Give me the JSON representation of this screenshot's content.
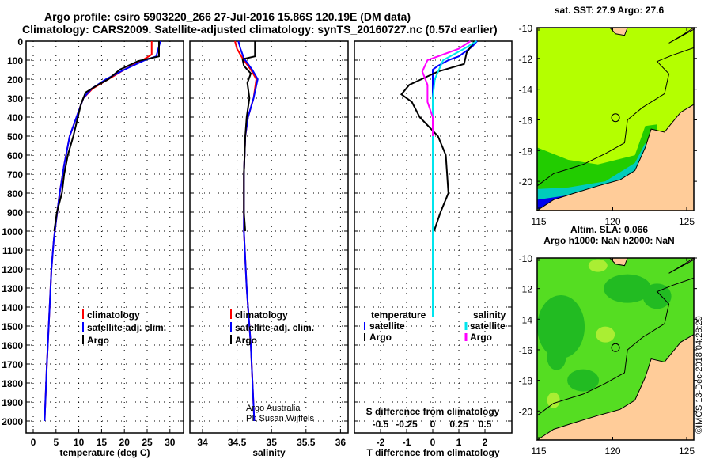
{
  "title_line1": "Argo profile: csiro 5903220_266 27-Jul-2016 15.86S 120.19E (DM data)",
  "title_line2": "Climatology: CARS2009. Satellite-adjusted climatology: synTS_20160727.nc (0.57d earlier)",
  "credit": "©IMOS 13-Dec-2018 04:28:29",
  "colors": {
    "argo": "#000000",
    "clim": "#ff0000",
    "sat": "#0000ff",
    "sat_s": "#00e5ee",
    "argo_s": "#ff00ff",
    "sst_bg": "#b4ff00",
    "land": "#ffcc99"
  },
  "chart_data": [
    {
      "type": "line",
      "name": "temperature",
      "xlabel": "temperature (deg C)",
      "xlim": [
        -2,
        32
      ],
      "ylim": [
        0,
        2050
      ],
      "xticks": [
        0,
        5,
        10,
        15,
        20,
        25,
        30
      ],
      "yticks": [
        0,
        100,
        200,
        300,
        400,
        500,
        600,
        700,
        800,
        900,
        1000,
        1100,
        1200,
        1300,
        1400,
        1500,
        1600,
        1700,
        1800,
        1900,
        2000
      ],
      "legend": [
        "climatology",
        "satellite-adj. clim.",
        "Argo"
      ],
      "series": [
        {
          "name": "climatology",
          "color": "clim",
          "points": [
            [
              26,
              0
            ],
            [
              26,
              70
            ],
            [
              24,
              100
            ],
            [
              20,
              150
            ],
            [
              16.5,
              200
            ],
            [
              13,
              250
            ],
            [
              11,
              300
            ],
            [
              9.5,
              400
            ],
            [
              8,
              500
            ],
            [
              6.8,
              650
            ],
            [
              5.8,
              800
            ],
            [
              5,
              950
            ],
            [
              4.5,
              1050
            ],
            [
              4,
              1200
            ],
            [
              3.4,
              1500
            ],
            [
              3,
              1700
            ],
            [
              2.5,
              2000
            ]
          ]
        },
        {
          "name": "satellite-adj. clim.",
          "color": "sat",
          "points": [
            [
              27.9,
              0
            ],
            [
              27,
              80
            ],
            [
              24.5,
              100
            ],
            [
              20,
              150
            ],
            [
              16,
              200
            ],
            [
              12.8,
              250
            ],
            [
              11,
              300
            ],
            [
              9.5,
              400
            ],
            [
              8,
              500
            ],
            [
              6.8,
              650
            ],
            [
              5.8,
              800
            ],
            [
              5,
              950
            ],
            [
              4.5,
              1050
            ],
            [
              4,
              1200
            ],
            [
              3.4,
              1500
            ],
            [
              3,
              1700
            ],
            [
              2.5,
              2000
            ]
          ]
        },
        {
          "name": "Argo",
          "color": "argo",
          "points": [
            [
              27.6,
              0
            ],
            [
              27.6,
              80
            ],
            [
              23,
              105
            ],
            [
              19,
              150
            ],
            [
              16.5,
              200
            ],
            [
              13.5,
              240
            ],
            [
              11.5,
              270
            ],
            [
              10.5,
              330
            ],
            [
              9.8,
              400
            ],
            [
              8.8,
              500
            ],
            [
              7.6,
              600
            ],
            [
              6.8,
              700
            ],
            [
              6.3,
              800
            ],
            [
              5.2,
              900
            ],
            [
              4.6,
              1000
            ]
          ]
        }
      ]
    },
    {
      "type": "line",
      "name": "salinity",
      "xlabel": "salinity",
      "xlim": [
        33.8,
        36.1
      ],
      "xticks": [
        34,
        34.5,
        35,
        35.5,
        36
      ],
      "legend": [
        "climatology",
        "satellite-adj. clim.",
        "Argo"
      ],
      "note1": "Argo Australia",
      "note2": "PI: Susan Wijffels",
      "series": [
        {
          "name": "climatology",
          "color": "clim",
          "points": [
            [
              34.47,
              0
            ],
            [
              34.5,
              40
            ],
            [
              34.58,
              90
            ],
            [
              34.7,
              150
            ],
            [
              34.78,
              200
            ],
            [
              34.74,
              300
            ],
            [
              34.66,
              400
            ],
            [
              34.62,
              500
            ],
            [
              34.6,
              700
            ],
            [
              34.6,
              1000
            ],
            [
              34.64,
              1300
            ],
            [
              34.7,
              1600
            ],
            [
              34.75,
              2000
            ]
          ]
        },
        {
          "name": "satellite-adj. clim.",
          "color": "sat",
          "points": [
            [
              34.52,
              0
            ],
            [
              34.55,
              40
            ],
            [
              34.6,
              90
            ],
            [
              34.72,
              150
            ],
            [
              34.8,
              200
            ],
            [
              34.74,
              300
            ],
            [
              34.66,
              400
            ],
            [
              34.62,
              500
            ],
            [
              34.6,
              700
            ],
            [
              34.6,
              1000
            ],
            [
              34.64,
              1300
            ],
            [
              34.7,
              1600
            ],
            [
              34.75,
              2000
            ]
          ]
        },
        {
          "name": "Argo",
          "color": "argo",
          "points": [
            [
              34.76,
              0
            ],
            [
              34.76,
              80
            ],
            [
              34.58,
              95
            ],
            [
              34.6,
              130
            ],
            [
              34.7,
              170
            ],
            [
              34.65,
              220
            ],
            [
              34.68,
              300
            ],
            [
              34.64,
              400
            ],
            [
              34.62,
              500
            ],
            [
              34.6,
              700
            ],
            [
              34.6,
              900
            ],
            [
              34.62,
              1000
            ]
          ]
        }
      ]
    },
    {
      "type": "line",
      "name": "difference",
      "xlabel": "T difference from climatology",
      "x2label": "S difference from climatology",
      "xlim": [
        -3,
        3
      ],
      "xticks": [
        -2,
        -1,
        0,
        1,
        2
      ],
      "x2ticks": [
        "-0.5",
        "-0.25",
        "0",
        "0.25",
        "0.5"
      ],
      "legend_t": {
        "head": "temperature",
        "items": [
          "satellite",
          "Argo"
        ]
      },
      "legend_s": {
        "head": "salinity",
        "items": [
          "satellite",
          "Argo"
        ]
      },
      "series": [
        {
          "name": "T satellite",
          "color": "sat",
          "points": [
            [
              1.7,
              0
            ],
            [
              1.5,
              30
            ],
            [
              1.0,
              80
            ],
            [
              0.6,
              100
            ],
            [
              0.2,
              130
            ],
            [
              0,
              150
            ],
            [
              0,
              300
            ],
            [
              0,
              600
            ],
            [
              0,
              1000
            ],
            [
              0,
              1450
            ]
          ]
        },
        {
          "name": "T Argo",
          "color": "argo",
          "points": [
            [
              1.6,
              0
            ],
            [
              1.3,
              60
            ],
            [
              1.2,
              120
            ],
            [
              0.2,
              160
            ],
            [
              -0.9,
              230
            ],
            [
              -1.2,
              280
            ],
            [
              -0.8,
              320
            ],
            [
              -0.5,
              400
            ],
            [
              0.2,
              500
            ],
            [
              0.5,
              600
            ],
            [
              0.55,
              700
            ],
            [
              0.6,
              800
            ],
            [
              0.3,
              900
            ],
            [
              0.05,
              1000
            ]
          ]
        },
        {
          "name": "S satellite",
          "color": "sat_s",
          "points": [
            [
              0.42,
              0
            ],
            [
              0.3,
              40
            ],
            [
              0.1,
              100
            ],
            [
              0.02,
              200
            ],
            [
              0,
              300
            ],
            [
              0,
              600
            ],
            [
              0,
              1000
            ],
            [
              0,
              1450
            ]
          ]
        },
        {
          "name": "S Argo",
          "color": "argo_s",
          "points": [
            [
              0.36,
              0
            ],
            [
              0.25,
              40
            ],
            [
              -0.05,
              100
            ],
            [
              -0.1,
              160
            ],
            [
              -0.05,
              230
            ],
            [
              -0.05,
              320
            ],
            [
              0,
              400
            ],
            [
              0,
              500
            ]
          ]
        }
      ]
    }
  ],
  "map1": {
    "title": "sat. SST: 27.9 Argo: 27.6",
    "lat_ticks": [
      "-10",
      "-12",
      "-14",
      "-16",
      "-18",
      "-20"
    ],
    "lon_ticks": [
      "115",
      "120",
      "125"
    ]
  },
  "map2": {
    "title1": "Altim. SLA: 0.066",
    "title2": "Argo h1000: NaN h2000: NaN",
    "lat_ticks": [
      "-10",
      "-12",
      "-14",
      "-16",
      "-18",
      "-20"
    ],
    "lon_ticks": [
      "115",
      "120",
      "125"
    ]
  }
}
